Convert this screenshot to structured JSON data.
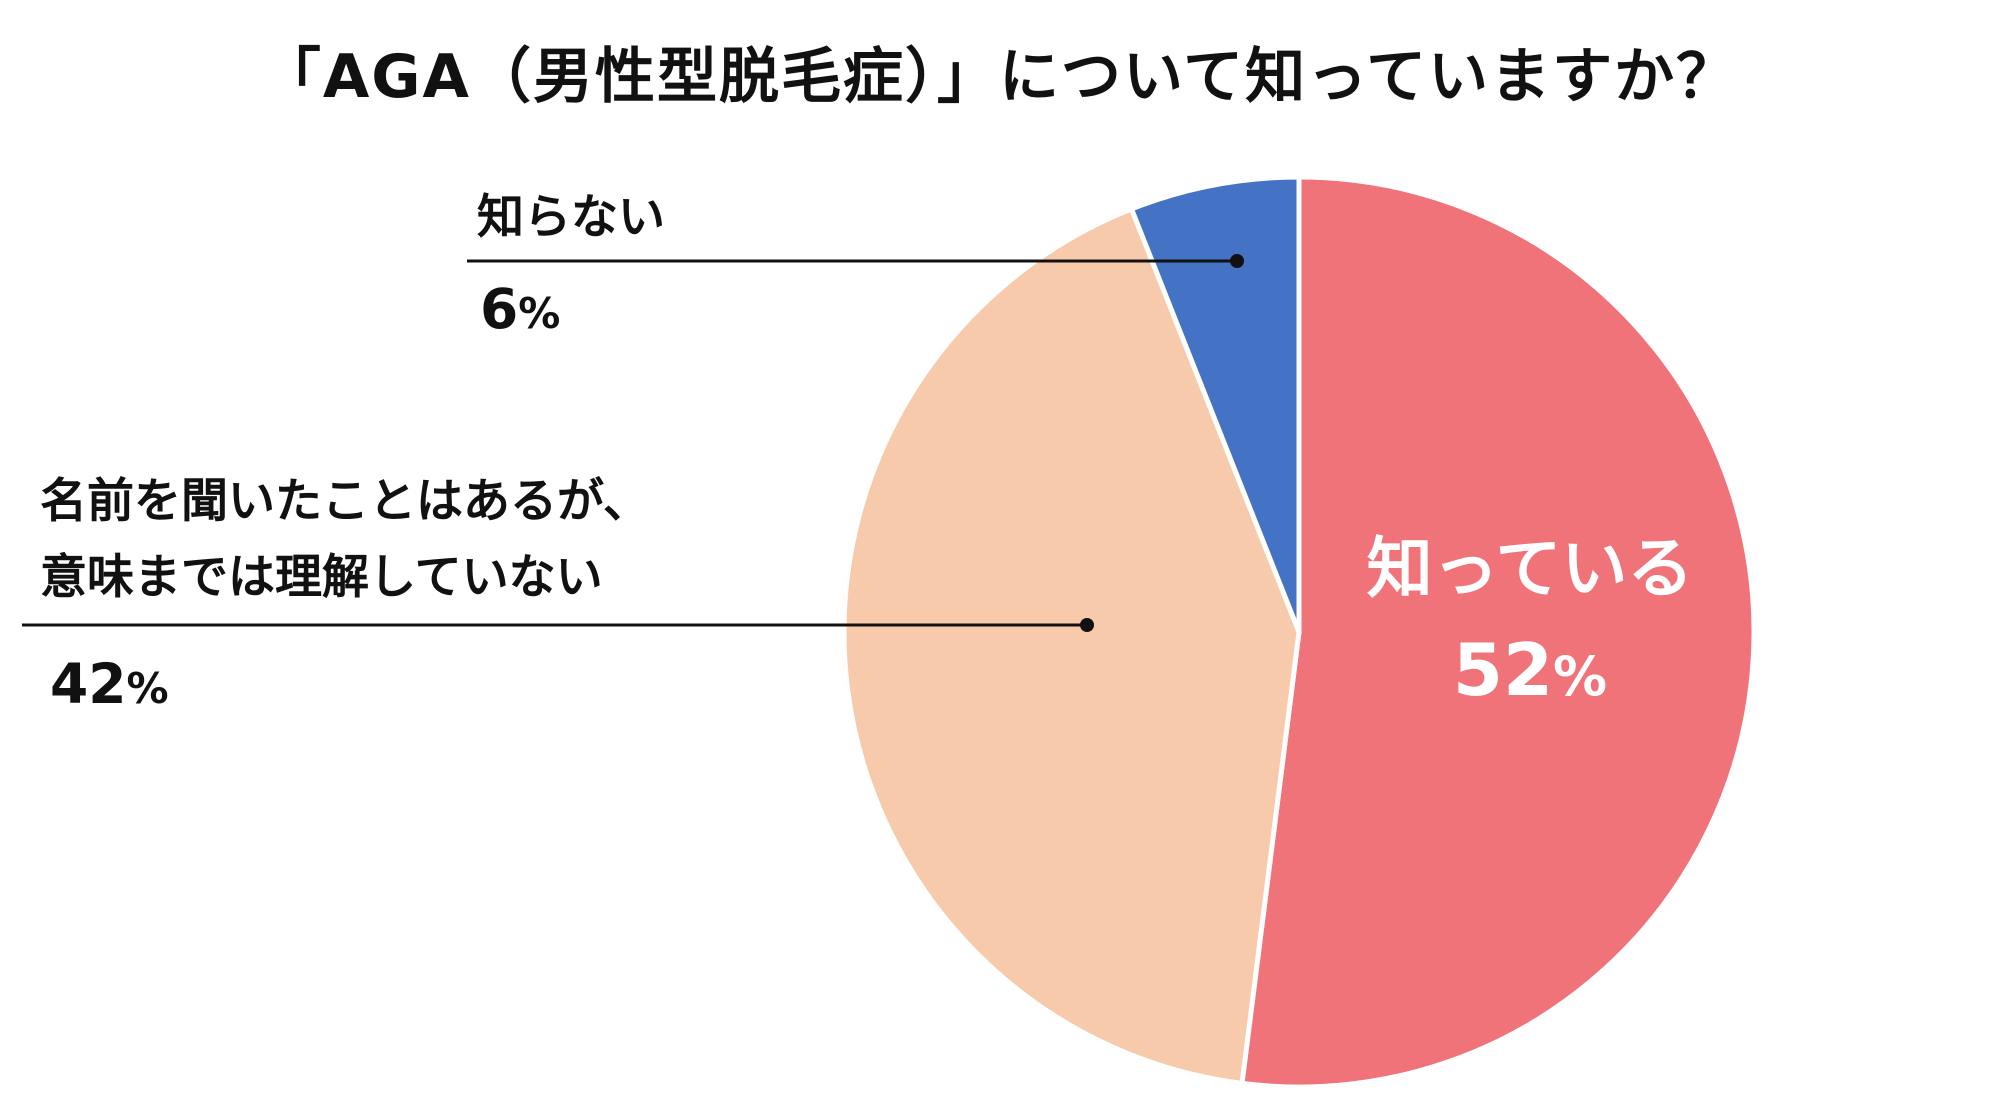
{
  "chart_data": {
    "type": "pie",
    "title": "「AGA（男性型脱毛症）」について知っていますか？",
    "slices": [
      {
        "label": "知っている",
        "value": 52,
        "pct_text": "52",
        "color": "#f0737a"
      },
      {
        "label_lines": [
          "名前を聞いたことはあるが、",
          "意味までは理解していない"
        ],
        "value": 42,
        "pct_text": "42",
        "color": "#f6caab"
      },
      {
        "label": "知らない",
        "value": 6,
        "pct_text": "6",
        "color": "#4472c4"
      }
    ],
    "percent_sign": "%",
    "legend": "none"
  }
}
